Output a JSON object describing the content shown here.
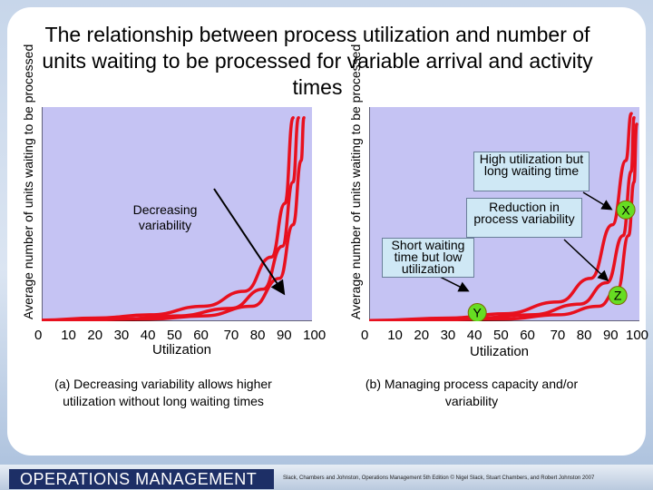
{
  "title": "The relationship between process utilization and number of units waiting to be processed for variable arrival and activity times",
  "chart_data": [
    {
      "type": "line",
      "panel": "a",
      "ylabel": "Average number of units waiting to be processed",
      "xlabel": "Utilization",
      "x_ticks": [
        "0",
        "10",
        "20",
        "30",
        "40",
        "50",
        "60",
        "70",
        "80",
        "90",
        "100"
      ],
      "xlim": [
        0,
        100
      ],
      "grid": false,
      "annotation": "Decreasing variability",
      "series": [
        {
          "values": [
            [
              0,
              0.5
            ],
            [
              20,
              1.5
            ],
            [
              40,
              3
            ],
            [
              60,
              7
            ],
            [
              75,
              14
            ],
            [
              85,
              30
            ],
            [
              90,
              55
            ],
            [
              93,
              95
            ]
          ]
        },
        {
          "values": [
            [
              0,
              0.3
            ],
            [
              30,
              1
            ],
            [
              50,
              2.5
            ],
            [
              70,
              6
            ],
            [
              82,
              15
            ],
            [
              89,
              35
            ],
            [
              93,
              65
            ],
            [
              95,
              95
            ]
          ]
        },
        {
          "values": [
            [
              0,
              0.2
            ],
            [
              40,
              1
            ],
            [
              60,
              2.5
            ],
            [
              78,
              7
            ],
            [
              88,
              20
            ],
            [
              93,
              45
            ],
            [
              96,
              75
            ],
            [
              97,
              95
            ]
          ]
        }
      ],
      "caption": "(a) Decreasing variability allows higher utilization without long waiting times"
    },
    {
      "type": "line",
      "panel": "b",
      "ylabel": "Average number of units waiting to be processed",
      "xlabel": "Utilization",
      "x_ticks": [
        "0",
        "10",
        "20",
        "30",
        "40",
        "50",
        "60",
        "70",
        "80",
        "90",
        "100"
      ],
      "xlim": [
        0,
        100
      ],
      "grid": false,
      "points": [
        {
          "label": "X",
          "x": 95,
          "y": 52
        },
        {
          "label": "Y",
          "x": 40,
          "y": 4
        },
        {
          "label": "Z",
          "x": 92,
          "y": 12
        }
      ],
      "series": [
        {
          "values": [
            [
              0,
              0.3
            ],
            [
              30,
              1.5
            ],
            [
              50,
              3.5
            ],
            [
              70,
              9
            ],
            [
              82,
              20
            ],
            [
              90,
              45
            ],
            [
              95,
              75
            ],
            [
              97,
              97
            ]
          ]
        },
        {
          "values": [
            [
              0,
              0.2
            ],
            [
              40,
              1.5
            ],
            [
              60,
              3
            ],
            [
              78,
              8
            ],
            [
              88,
              18
            ],
            [
              94,
              40
            ],
            [
              97,
              70
            ],
            [
              98,
              95
            ]
          ]
        },
        {
          "values": [
            [
              0,
              0.1
            ],
            [
              50,
              1
            ],
            [
              70,
              3
            ],
            [
              85,
              7
            ],
            [
              92,
              15
            ],
            [
              96,
              40
            ],
            [
              98,
              65
            ],
            [
              99,
              92
            ]
          ]
        }
      ],
      "notes": [
        "High utilization but long waiting time",
        "Reduction in process variability",
        "Short waiting time but low utilization"
      ],
      "caption": "(b) Managing process capacity and/or variability"
    }
  ],
  "footer": {
    "brand": "OPERATIONS MANAGEMENT",
    "credit": "Slack, Chambers and Johnston, Operations Management 5th Edition © Nigel Slack, Stuart Chambers, and Robert Johnston 2007"
  },
  "colors": {
    "plot_bg": "#c5c3f3",
    "curve": "#e8101e",
    "note_bg": "#cfe8f5",
    "brand_bg": "#1d2f66"
  }
}
